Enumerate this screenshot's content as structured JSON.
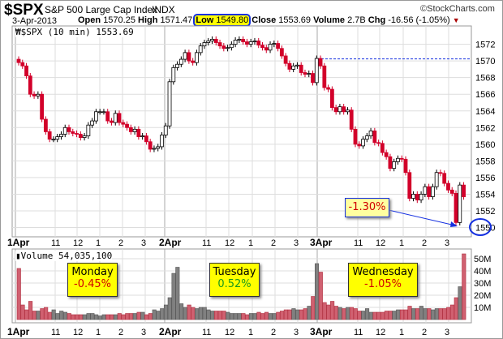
{
  "header": {
    "symbol": "$SPX",
    "name": "S&P 500 Large Cap Index",
    "exchange": "INDX",
    "watermark": "©StockCharts.com",
    "date": "3-Apr-2013",
    "open_label": "Open",
    "open": "1570.25",
    "high_label": "High",
    "high": "1571.47",
    "low_label": "Low",
    "low": "1549.80",
    "close_label": "Close",
    "close": "1553.69",
    "volume_label": "Volume",
    "volume": "2.7B",
    "chg_label": "Chg",
    "chg": "-16.56 (-1.05%)"
  },
  "colors": {
    "up": "#ffffff",
    "down": "#d2002a",
    "vol_up": "#808080",
    "vol_down": "#d06070",
    "accent": "#1530e0",
    "highlight": "#ffff00"
  },
  "chart_data": [
    {
      "type": "candlestick",
      "title": "$SPX (10 min) 1553.69",
      "interval": "10 min",
      "ylim": [
        1549,
        1574
      ],
      "y_ticks": [
        "1550",
        "1552",
        "1554",
        "1556",
        "1558",
        "1560",
        "1562",
        "1564",
        "1566",
        "1568",
        "1570",
        "1572"
      ],
      "x_ticks": [
        "1Apr",
        "11",
        "12",
        "1",
        "2",
        "3",
        "2Apr",
        "11",
        "12",
        "1",
        "2",
        "3",
        "3Apr",
        "11",
        "12",
        "1",
        "2",
        "3"
      ],
      "open_first": 1570.2,
      "closes": [
        1569.8,
        1569.4,
        1568.2,
        1566.0,
        1565.8,
        1566.0,
        1563.0,
        1561.5,
        1560.6,
        1560.6,
        1560.9,
        1561.2,
        1562.0,
        1561.5,
        1561.3,
        1561.2,
        1560.8,
        1561.0,
        1562.3,
        1562.8,
        1563.9,
        1563.9,
        1563.9,
        1562.8,
        1562.6,
        1563.7,
        1562.6,
        1562.4,
        1562.0,
        1561.5,
        1561.8,
        1560.9,
        1561.0,
        1560.3,
        1559.4,
        1559.5,
        1559.7,
        1561.1,
        1562.2,
        1567.5,
        1569.2,
        1569.6,
        1570.2,
        1571.0,
        1570.0,
        1569.8,
        1571.0,
        1571.8,
        1572.2,
        1572.4,
        1572.6,
        1572.2,
        1571.8,
        1571.5,
        1571.6,
        1572.0,
        1572.5,
        1572.6,
        1572.3,
        1572.0,
        1572.3,
        1572.4,
        1571.9,
        1571.6,
        1571.3,
        1572.0,
        1572.1,
        1571.5,
        1570.6,
        1569.7,
        1569.0,
        1569.4,
        1569.5,
        1568.6,
        1568.4,
        1568.5,
        1567.4,
        1570.3,
        1569.4,
        1566.8,
        1566.6,
        1564.4,
        1563.9,
        1564.5,
        1563.9,
        1564.1,
        1561.8,
        1560.0,
        1559.8,
        1560.6,
        1561.0,
        1561.6,
        1560.2,
        1560.1,
        1559.0,
        1558.5,
        1557.1,
        1557.9,
        1558.3,
        1558.2,
        1556.6,
        1553.5,
        1554.0,
        1553.3,
        1554.0,
        1554.9,
        1553.7,
        1554.9,
        1556.6,
        1556.5,
        1555.3,
        1554.5,
        1554.1,
        1550.6,
        1555.1,
        1553.69
      ],
      "reference_line": 1570.25,
      "annotation": "-1.30%",
      "circled_tick": "1550"
    },
    {
      "type": "bar",
      "title": "Volume 54,035,100",
      "ylim": [
        0,
        56
      ],
      "unit": "M",
      "y_ticks": [
        "10M",
        "20M",
        "30M",
        "40M",
        "50M"
      ],
      "values": [
        42,
        12,
        8,
        15,
        7,
        7,
        9,
        10,
        6,
        8,
        5,
        7,
        6,
        5,
        4,
        4,
        4,
        4,
        5,
        5,
        4,
        3,
        4,
        4,
        4,
        4,
        5,
        4,
        5,
        5,
        5,
        6,
        6,
        4,
        5,
        8,
        7,
        9,
        12,
        18,
        38,
        43,
        13,
        10,
        12,
        10,
        9,
        10,
        10,
        8,
        7,
        7,
        7,
        7,
        6,
        5,
        5,
        5,
        5,
        4,
        5,
        5,
        6,
        5,
        6,
        5,
        5,
        6,
        7,
        8,
        8,
        9,
        8,
        8,
        9,
        11,
        19,
        46,
        39,
        14,
        12,
        15,
        11,
        10,
        9,
        10,
        10,
        9,
        7,
        7,
        9,
        6,
        6,
        6,
        6,
        7,
        7,
        7,
        8,
        8,
        8,
        11,
        9,
        9,
        11,
        9,
        9,
        8,
        9,
        9,
        9,
        10,
        12,
        18,
        27,
        54
      ]
    }
  ],
  "annotations": [
    {
      "day": "Monday",
      "change": "-0.45%",
      "color": "#d00000"
    },
    {
      "day": "Tuesday",
      "change": "0.52%",
      "color": "#1a9a1a"
    },
    {
      "day": "Wednesday",
      "change": "-1.05%",
      "color": "#d00000"
    }
  ]
}
